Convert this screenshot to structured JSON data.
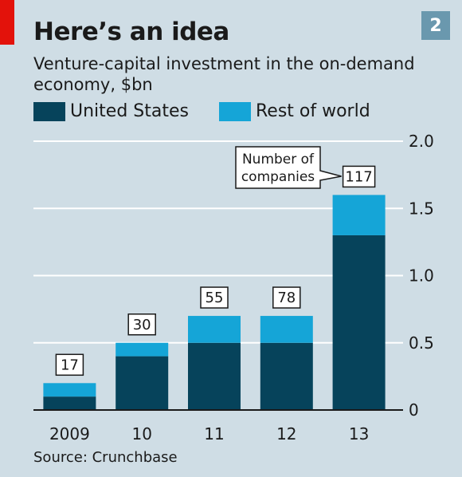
{
  "title": "Here’s an idea",
  "subtitle": "Venture-capital investment in the on-demand economy, $bn",
  "chart_number": "2",
  "source": "Source: Crunchbase",
  "colors": {
    "us": "#06435b",
    "row": "#15a5d7",
    "grid": "#ffffff",
    "background": "#cfdde5"
  },
  "legend": [
    {
      "label": "United States",
      "color": "#06435b"
    },
    {
      "label": "Rest of world",
      "color": "#15a5d7"
    }
  ],
  "chart_data": {
    "type": "bar",
    "stacked": true,
    "categories": [
      "2009",
      "10",
      "11",
      "12",
      "13"
    ],
    "series": [
      {
        "name": "United States",
        "values": [
          0.1,
          0.4,
          0.5,
          0.5,
          1.3
        ]
      },
      {
        "name": "Rest of world",
        "values": [
          0.1,
          0.1,
          0.2,
          0.2,
          0.3
        ]
      }
    ],
    "ylim": [
      0,
      2.0
    ],
    "yticks": [
      "0",
      "0.5",
      "1.0",
      "1.5",
      "2.0"
    ],
    "ytick_values": [
      0,
      0.5,
      1.0,
      1.5,
      2.0
    ],
    "annotations": [
      "17",
      "30",
      "55",
      "78",
      "117"
    ],
    "callout": "Number of companies",
    "grid": true,
    "legend_position": "top-left"
  }
}
